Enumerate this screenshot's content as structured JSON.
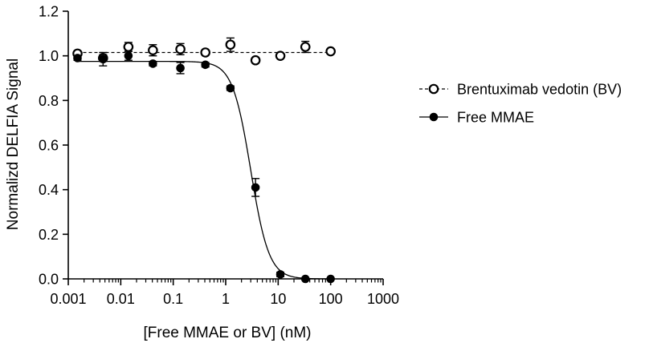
{
  "chart_data": {
    "type": "scatter",
    "title": "",
    "xlabel": "[Free MMAE or BV]  (nM)",
    "ylabel": "Normalizd DELFIA Signal",
    "xscale": "log",
    "xlim": [
      0.001,
      1000
    ],
    "ylim": [
      0.0,
      1.2
    ],
    "x_ticks": [
      0.001,
      0.01,
      0.1,
      1,
      10,
      100,
      1000
    ],
    "x_tick_labels": [
      "0.001",
      "0.01",
      "0.1",
      "1",
      "10",
      "100",
      "1000"
    ],
    "y_ticks": [
      0.0,
      0.2,
      0.4,
      0.6,
      0.8,
      1.0,
      1.2
    ],
    "y_tick_labels": [
      "0.0",
      "0.2",
      "0.4",
      "0.6",
      "0.8",
      "1.0",
      "1.2"
    ],
    "legend_position": "right",
    "series": [
      {
        "name": "Brentuximab vedotin (BV)",
        "marker": "open-circle",
        "line_style": "dashed",
        "fit": {
          "model": "constant",
          "value": 1.015
        },
        "x": [
          0.0015,
          0.0046,
          0.014,
          0.041,
          0.137,
          0.41,
          1.23,
          3.7,
          11,
          33,
          100
        ],
        "y": [
          1.01,
          0.99,
          1.04,
          1.025,
          1.03,
          1.015,
          1.05,
          0.98,
          1.0,
          1.04,
          1.02
        ],
        "err": [
          0.01,
          0.015,
          0.02,
          0.025,
          0.025,
          0.01,
          0.03,
          0.01,
          0.01,
          0.025,
          0.01
        ]
      },
      {
        "name": "Free MMAE",
        "marker": "filled-circle",
        "line_style": "solid",
        "fit": {
          "model": "four-parameter logistic",
          "top": 0.975,
          "bottom": 0.0,
          "ec50": 3.0,
          "hill": 2.5
        },
        "x": [
          0.0015,
          0.0046,
          0.014,
          0.041,
          0.137,
          0.41,
          1.23,
          3.7,
          11,
          33,
          100
        ],
        "y": [
          0.99,
          0.985,
          1.0,
          0.965,
          0.945,
          0.96,
          0.855,
          0.41,
          0.02,
          0.0,
          0.0
        ],
        "err": [
          0.01,
          0.03,
          0.02,
          0.01,
          0.025,
          0.01,
          0.01,
          0.04,
          0.01,
          0.005,
          0.005
        ]
      }
    ]
  }
}
